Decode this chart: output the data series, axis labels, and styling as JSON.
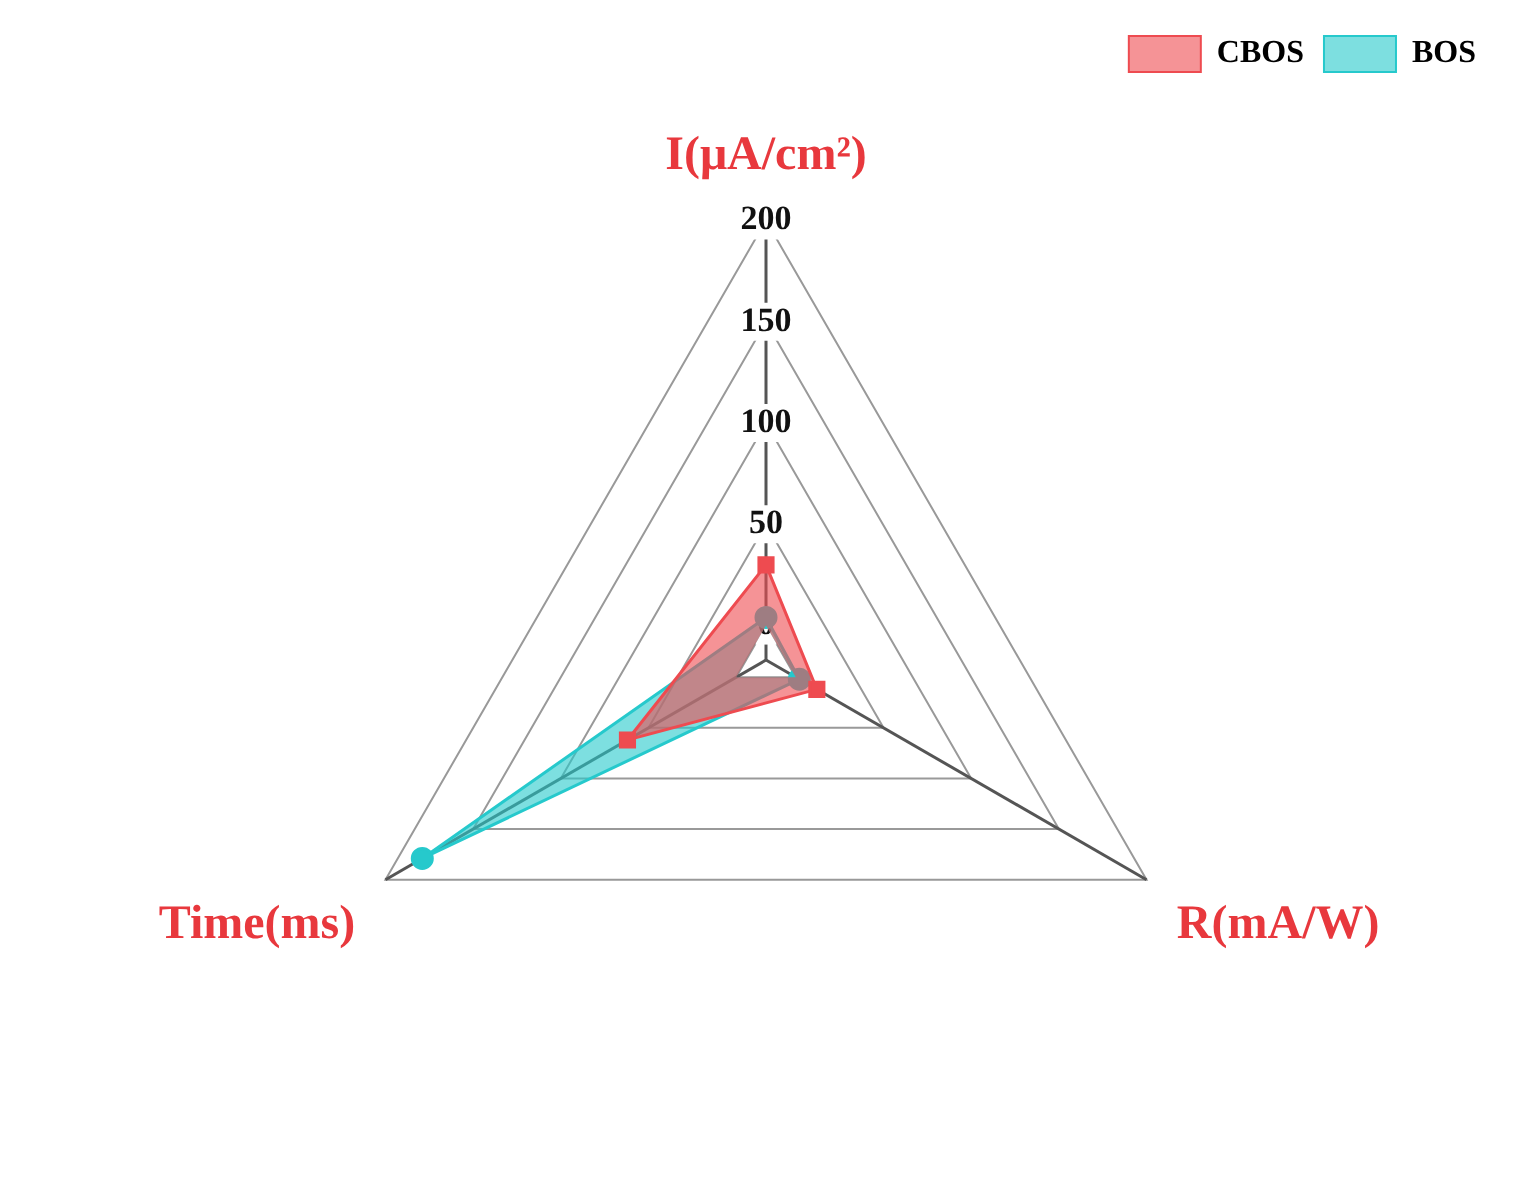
{
  "chart_data": {
    "type": "radar",
    "categories": [
      "I(μA/cm²)",
      "R(mA/W)",
      "Time(ms)"
    ],
    "series": [
      {
        "name": "CBOS",
        "color": "#ee4b50",
        "values": [
          30,
          12,
          62
        ],
        "marker": "square"
      },
      {
        "name": "BOS",
        "color": "#26c9cc",
        "values": [
          4,
          2,
          179
        ],
        "marker": "circle"
      }
    ],
    "ylim": [
      -17,
      200
    ],
    "yticks": [
      0,
      50,
      100,
      150,
      200
    ],
    "grid": true,
    "legend": "top right"
  }
}
